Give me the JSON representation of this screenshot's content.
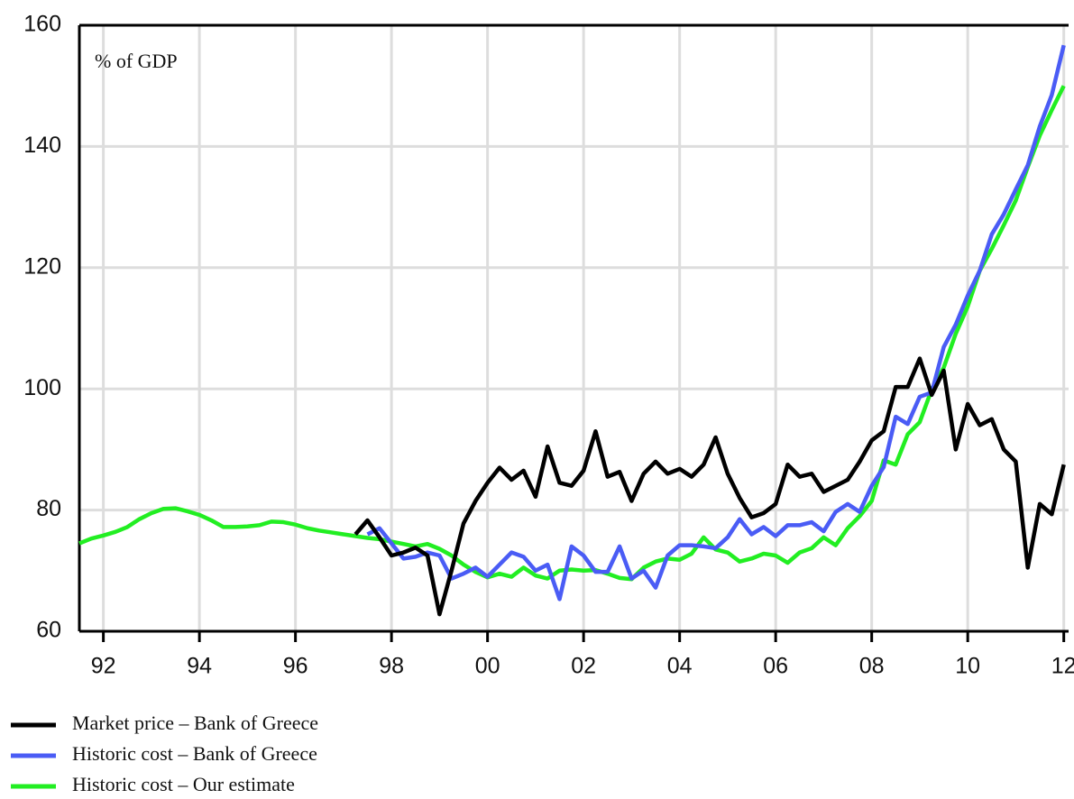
{
  "chart_data": {
    "type": "line",
    "annotation": "% of GDP",
    "x": [
      1991.5,
      1991.75,
      1992,
      1992.25,
      1992.5,
      1992.75,
      1993,
      1993.25,
      1993.5,
      1993.75,
      1994,
      1994.25,
      1994.5,
      1994.75,
      1995,
      1995.25,
      1995.5,
      1995.75,
      1996,
      1996.25,
      1996.5,
      1996.75,
      1997,
      1997.25,
      1997.5,
      1997.75,
      1998,
      1998.25,
      1998.5,
      1998.75,
      1999,
      1999.25,
      1999.5,
      1999.75,
      2000,
      2000.25,
      2000.5,
      2000.75,
      2001,
      2001.25,
      2001.5,
      2001.75,
      2002,
      2002.25,
      2002.5,
      2002.75,
      2003,
      2003.25,
      2003.5,
      2003.75,
      2004,
      2004.25,
      2004.5,
      2004.75,
      2005,
      2005.25,
      2005.5,
      2005.75,
      2006,
      2006.25,
      2006.5,
      2006.75,
      2007,
      2007.25,
      2007.5,
      2007.75,
      2008,
      2008.25,
      2008.5,
      2008.75,
      2009,
      2009.25,
      2009.5,
      2009.75,
      2010,
      2010.25,
      2010.5,
      2010.75,
      2011,
      2011.25,
      2011.5,
      2011.75,
      2012
    ],
    "series": [
      {
        "name": "Market price – Bank of Greece",
        "color": "#000000",
        "values": [
          null,
          null,
          null,
          null,
          null,
          null,
          null,
          null,
          null,
          null,
          null,
          null,
          null,
          null,
          null,
          null,
          null,
          null,
          null,
          null,
          null,
          null,
          null,
          76,
          78.3,
          75.5,
          72.5,
          73,
          73.8,
          72.5,
          62.8,
          70,
          77.8,
          81.5,
          84.5,
          87,
          85,
          86.5,
          82.2,
          90.5,
          84.5,
          84,
          86.5,
          93,
          85.5,
          86.3,
          81.5,
          86,
          88,
          86,
          86.8,
          85.5,
          87.5,
          92,
          86,
          82,
          78.8,
          79.5,
          81,
          87.5,
          85.5,
          86,
          83,
          84,
          85,
          88,
          91.5,
          93,
          100.3,
          100.3,
          105,
          99,
          103,
          90,
          97.5,
          94,
          95,
          90,
          88,
          70.5,
          81,
          79.3,
          87.5
        ]
      },
      {
        "name": "Historic cost – Bank of Greece",
        "color": "#4a5cf5",
        "values": [
          null,
          null,
          null,
          null,
          null,
          null,
          null,
          null,
          null,
          null,
          null,
          null,
          null,
          null,
          null,
          null,
          null,
          null,
          null,
          null,
          null,
          null,
          null,
          null,
          76.0,
          77.0,
          74.5,
          72.0,
          72.3,
          73.0,
          72.5,
          68.7,
          69.5,
          70.5,
          69.0,
          71.0,
          73.0,
          72.3,
          70.0,
          71.0,
          65.3,
          74.0,
          72.5,
          69.8,
          69.8,
          74.0,
          68.7,
          70.0,
          67.2,
          72.5,
          74.2,
          74.2,
          74.0,
          73.7,
          75.5,
          78.5,
          76.0,
          77.2,
          75.7,
          77.5,
          77.5,
          78.0,
          76.5,
          79.7,
          81.0,
          79.7,
          84.0,
          87.1,
          95.4,
          94.2,
          98.7,
          99.4,
          106.9,
          110.6,
          115.4,
          119.5,
          125.5,
          128.8,
          132.9,
          136.9,
          143.3,
          148.5,
          156.7
        ]
      },
      {
        "name": "Historic cost – Our estimate",
        "color": "#22ee22",
        "values": [
          74.5,
          75.3,
          75.8,
          76.4,
          77.2,
          78.5,
          79.5,
          80.2,
          80.3,
          79.8,
          79.2,
          78.3,
          77.2,
          77.2,
          77.3,
          77.5,
          78.1,
          78.0,
          77.6,
          77.0,
          76.6,
          76.3,
          76.0,
          75.7,
          75.4,
          75.2,
          74.8,
          74.4,
          74.0,
          74.4,
          73.6,
          72.5,
          71.0,
          69.8,
          68.9,
          69.5,
          69.0,
          70.5,
          69.2,
          68.7,
          70.0,
          70.2,
          70.0,
          70.1,
          69.5,
          68.8,
          68.6,
          70.5,
          71.5,
          72.0,
          71.8,
          72.8,
          75.5,
          73.5,
          73.0,
          71.5,
          72.0,
          72.8,
          72.5,
          71.3,
          73.0,
          73.7,
          75.5,
          74.2,
          77.0,
          79.0,
          81.5,
          88.2,
          87.5,
          92.5,
          94.5,
          99.9,
          103.5,
          109.1,
          113.6,
          119.5,
          123.1,
          127.0,
          131.1,
          136.6,
          141.8,
          146.0,
          150.0
        ]
      }
    ],
    "xlim": [
      1991.5,
      2012.1
    ],
    "xticks": [
      {
        "value": 1992,
        "label": "92"
      },
      {
        "value": 1994,
        "label": "94"
      },
      {
        "value": 1996,
        "label": "96"
      },
      {
        "value": 1998,
        "label": "98"
      },
      {
        "value": 2000,
        "label": "00"
      },
      {
        "value": 2002,
        "label": "02"
      },
      {
        "value": 2004,
        "label": "04"
      },
      {
        "value": 2006,
        "label": "06"
      },
      {
        "value": 2008,
        "label": "08"
      },
      {
        "value": 2010,
        "label": "10"
      },
      {
        "value": 2012,
        "label": "12"
      }
    ],
    "ylim": [
      60,
      160
    ],
    "yticks": [
      60,
      80,
      100,
      120,
      140,
      160
    ],
    "grid": true
  }
}
